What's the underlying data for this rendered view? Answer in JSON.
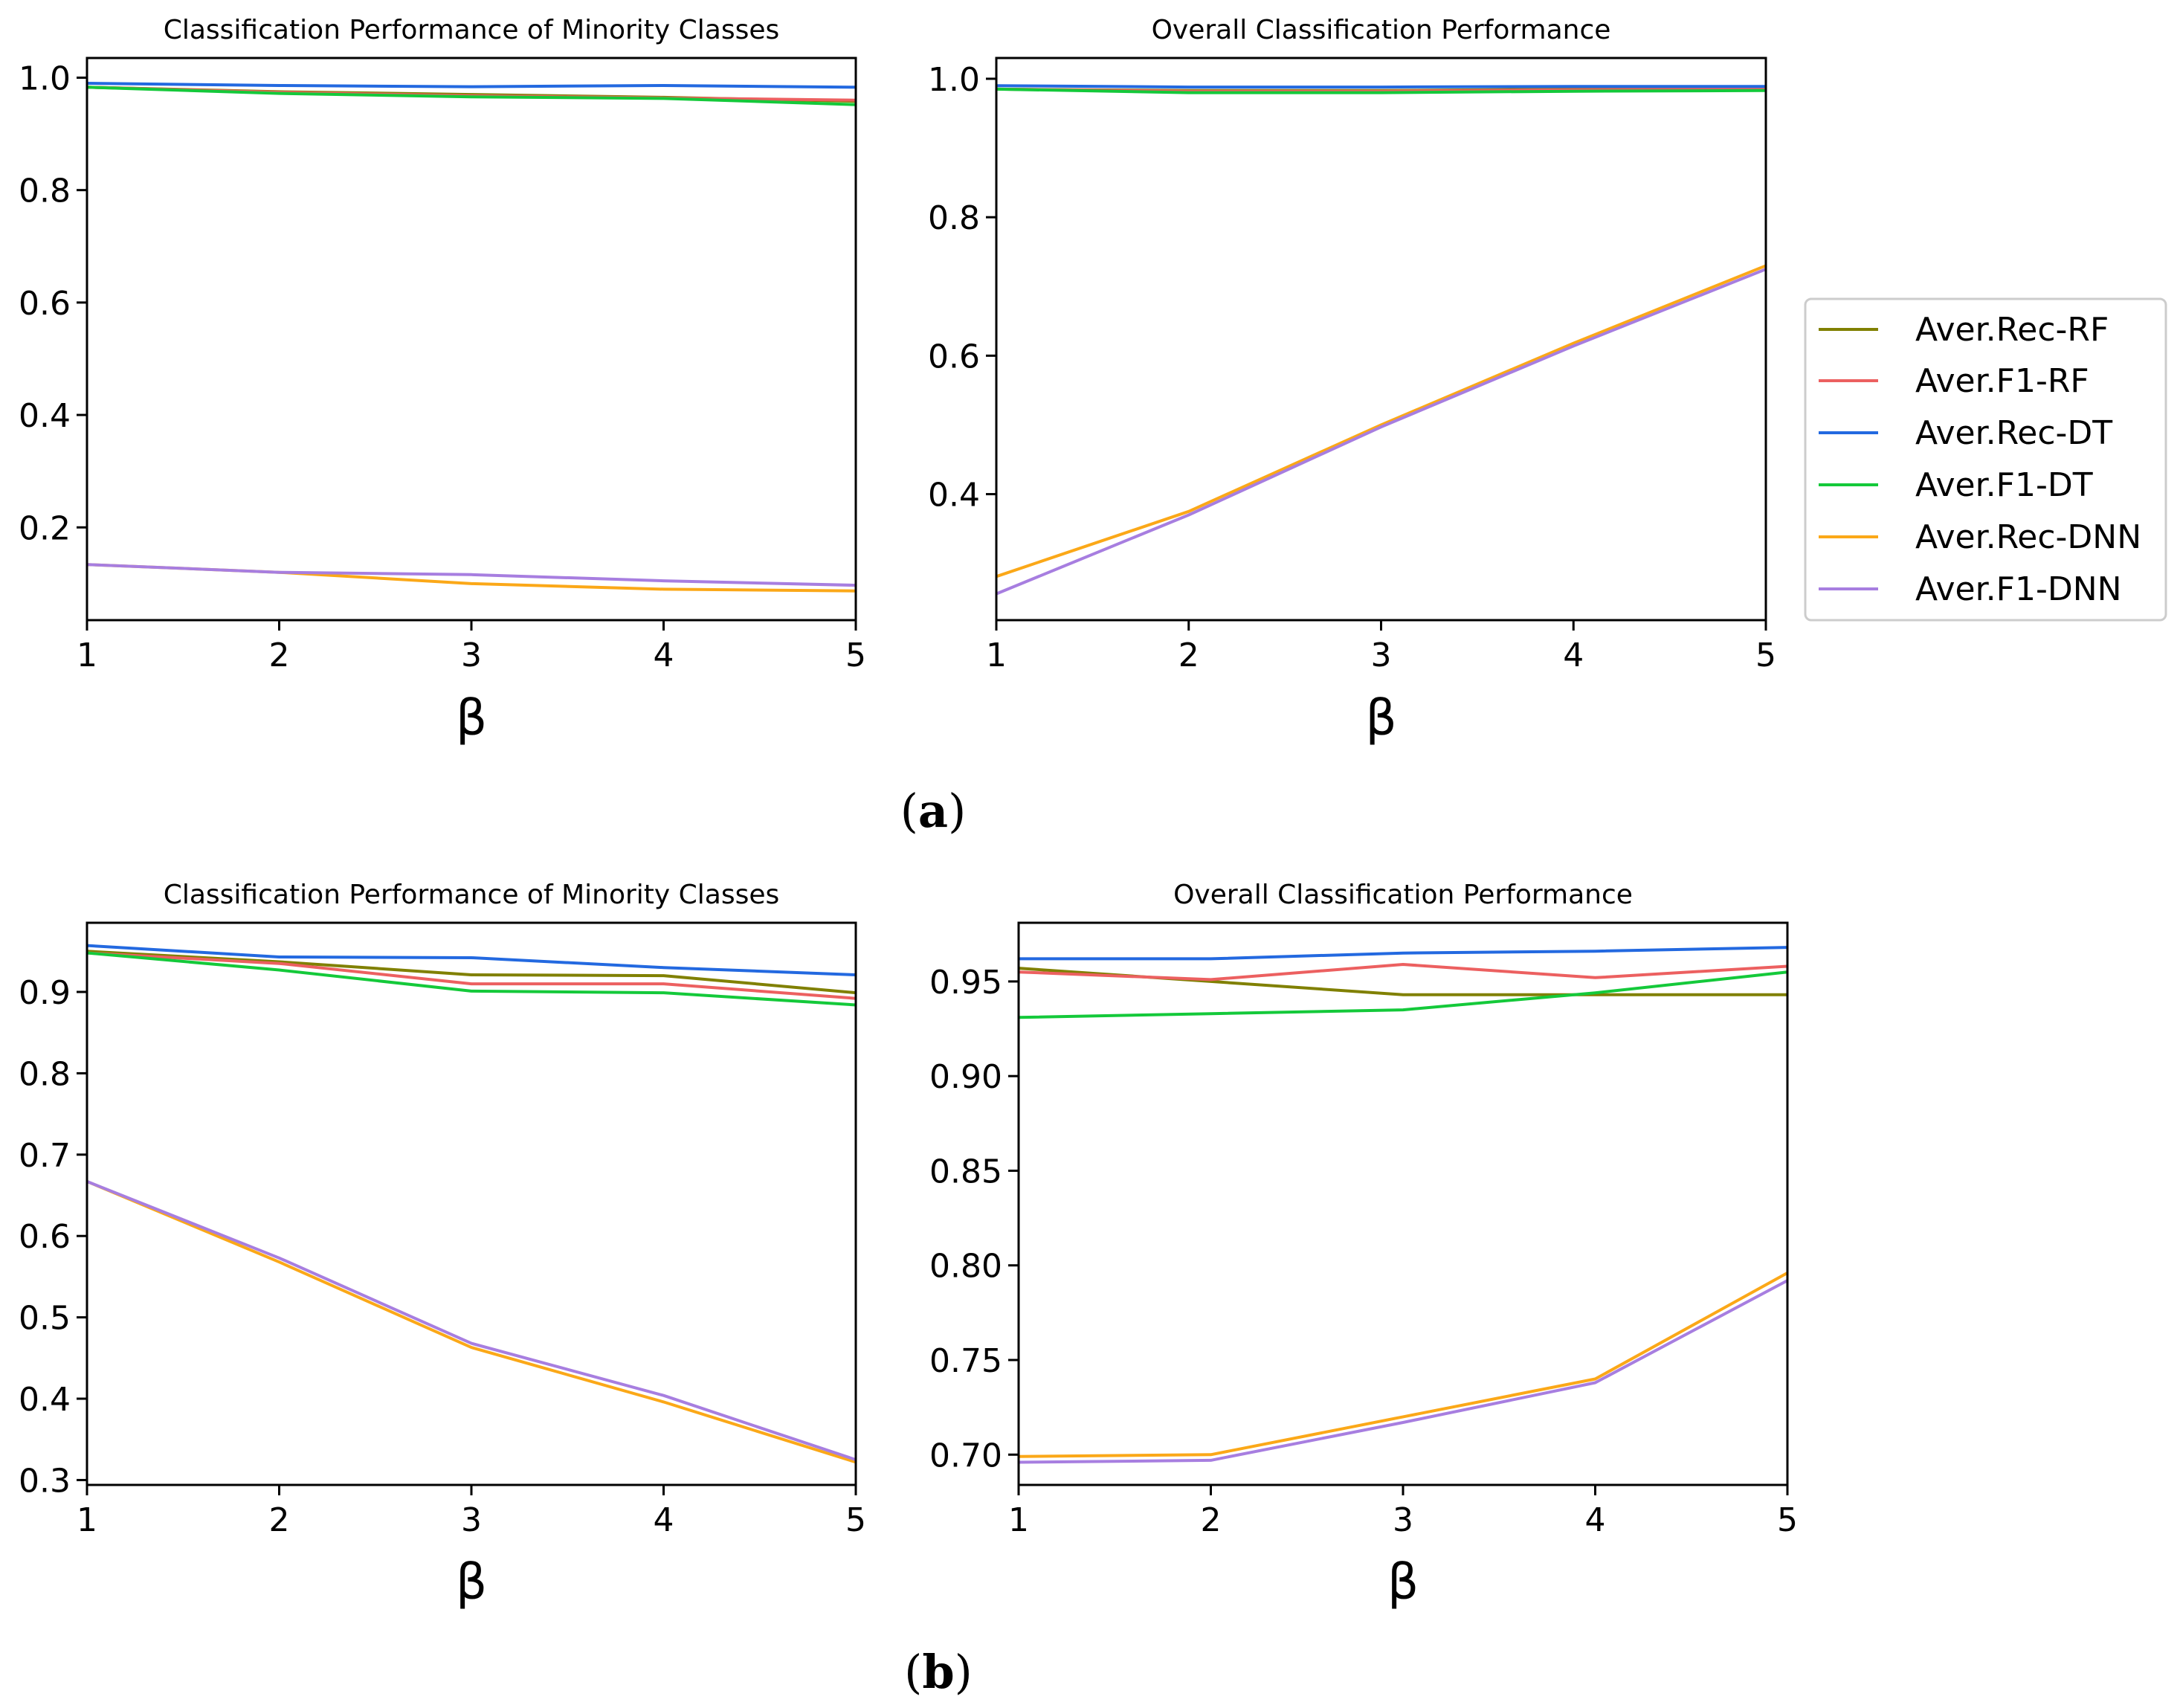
{
  "legend": {
    "entries": [
      {
        "label": "Aver.Rec-RF",
        "color": "#808000"
      },
      {
        "label": "Aver.F1-RF",
        "color": "#ec6060"
      },
      {
        "label": "Aver.Rec-DT",
        "color": "#2369e0"
      },
      {
        "label": "Aver.F1-DT",
        "color": "#14c93a"
      },
      {
        "label": "Aver.Rec-DNN",
        "color": "#fba818"
      },
      {
        "label": "Aver.F1-DNN",
        "color": "#a77ee0"
      }
    ]
  },
  "captions": {
    "a": {
      "open": "(",
      "letter": "a",
      "close": ")"
    },
    "b": {
      "open": "(",
      "letter": "b",
      "close": ")"
    }
  },
  "chart_data": [
    {
      "id": "a-left",
      "type": "line",
      "title": "Classification Performance of Minority Classes",
      "xlabel": "β",
      "ylabel": "",
      "x": [
        1,
        2,
        3,
        4,
        5
      ],
      "xlim": [
        1,
        5
      ],
      "ylim": [
        0.035,
        1.035
      ],
      "xticks": [
        "1",
        "2",
        "3",
        "4",
        "5"
      ],
      "yticks": [
        {
          "v": 0.2,
          "label": "0.2"
        },
        {
          "v": 0.4,
          "label": "0.4"
        },
        {
          "v": 0.6,
          "label": "0.6"
        },
        {
          "v": 0.8,
          "label": "0.8"
        },
        {
          "v": 1.0,
          "label": "1.0"
        }
      ],
      "series": [
        {
          "name": "Aver.Rec-RF",
          "color": "#808000",
          "values": [
            0.983,
            0.975,
            0.97,
            0.965,
            0.958
          ]
        },
        {
          "name": "Aver.F1-RF",
          "color": "#ec6060",
          "values": [
            0.983,
            0.974,
            0.968,
            0.964,
            0.96
          ]
        },
        {
          "name": "Aver.Rec-DT",
          "color": "#2369e0",
          "values": [
            0.99,
            0.986,
            0.984,
            0.986,
            0.983
          ]
        },
        {
          "name": "Aver.F1-DT",
          "color": "#14c93a",
          "values": [
            0.983,
            0.972,
            0.966,
            0.963,
            0.952
          ]
        },
        {
          "name": "Aver.Rec-DNN",
          "color": "#fba818",
          "values": [
            0.134,
            0.12,
            0.1,
            0.09,
            0.087
          ]
        },
        {
          "name": "Aver.F1-DNN",
          "color": "#a77ee0",
          "values": [
            0.134,
            0.12,
            0.116,
            0.105,
            0.097
          ]
        }
      ]
    },
    {
      "id": "a-right",
      "type": "line",
      "title": "Overall Classification Performance",
      "xlabel": "β",
      "ylabel": "",
      "x": [
        1,
        2,
        3,
        4,
        5
      ],
      "xlim": [
        1,
        5
      ],
      "ylim": [
        0.218,
        1.03
      ],
      "xticks": [
        "1",
        "2",
        "3",
        "4",
        "5"
      ],
      "yticks": [
        {
          "v": 0.4,
          "label": "0.4"
        },
        {
          "v": 0.6,
          "label": "0.6"
        },
        {
          "v": 0.8,
          "label": "0.8"
        },
        {
          "v": 1.0,
          "label": "1.0"
        }
      ],
      "series": [
        {
          "name": "Aver.Rec-RF",
          "color": "#808000",
          "values": [
            0.985,
            0.983,
            0.983,
            0.985,
            0.986
          ]
        },
        {
          "name": "Aver.F1-RF",
          "color": "#ec6060",
          "values": [
            0.985,
            0.982,
            0.982,
            0.984,
            0.985
          ]
        },
        {
          "name": "Aver.Rec-DT",
          "color": "#2369e0",
          "values": [
            0.99,
            0.988,
            0.988,
            0.989,
            0.989
          ]
        },
        {
          "name": "Aver.F1-DT",
          "color": "#14c93a",
          "values": [
            0.985,
            0.98,
            0.98,
            0.982,
            0.983
          ]
        },
        {
          "name": "Aver.Rec-DNN",
          "color": "#fba818",
          "values": [
            0.281,
            0.375,
            0.5,
            0.618,
            0.73
          ]
        },
        {
          "name": "Aver.F1-DNN",
          "color": "#a77ee0",
          "values": [
            0.256,
            0.37,
            0.497,
            0.614,
            0.725
          ]
        }
      ]
    },
    {
      "id": "b-left",
      "type": "line",
      "title": "Classification Performance of Minority Classes",
      "xlabel": "β",
      "ylabel": "",
      "x": [
        1,
        2,
        3,
        4,
        5
      ],
      "xlim": [
        1,
        5
      ],
      "ylim": [
        0.294,
        0.985
      ],
      "xticks": [
        "1",
        "2",
        "3",
        "4",
        "5"
      ],
      "yticks": [
        {
          "v": 0.3,
          "label": "0.3"
        },
        {
          "v": 0.4,
          "label": "0.4"
        },
        {
          "v": 0.5,
          "label": "0.5"
        },
        {
          "v": 0.6,
          "label": "0.6"
        },
        {
          "v": 0.7,
          "label": "0.7"
        },
        {
          "v": 0.8,
          "label": "0.8"
        },
        {
          "v": 0.9,
          "label": "0.9"
        }
      ],
      "series": [
        {
          "name": "Aver.Rec-RF",
          "color": "#808000",
          "values": [
            0.95,
            0.937,
            0.921,
            0.92,
            0.899
          ]
        },
        {
          "name": "Aver.F1-RF",
          "color": "#ec6060",
          "values": [
            0.948,
            0.935,
            0.91,
            0.91,
            0.892
          ]
        },
        {
          "name": "Aver.Rec-DT",
          "color": "#2369e0",
          "values": [
            0.957,
            0.943,
            0.942,
            0.93,
            0.921
          ]
        },
        {
          "name": "Aver.F1-DT",
          "color": "#14c93a",
          "values": [
            0.948,
            0.927,
            0.901,
            0.899,
            0.884
          ]
        },
        {
          "name": "Aver.Rec-DNN",
          "color": "#fba818",
          "values": [
            0.667,
            0.568,
            0.463,
            0.396,
            0.322
          ]
        },
        {
          "name": "Aver.F1-DNN",
          "color": "#a77ee0",
          "values": [
            0.667,
            0.573,
            0.468,
            0.404,
            0.325
          ]
        }
      ]
    },
    {
      "id": "b-right",
      "type": "line",
      "title": "Overall Classification Performance",
      "xlabel": "β",
      "ylabel": "",
      "x": [
        1,
        2,
        3,
        4,
        5
      ],
      "xlim": [
        1,
        5
      ],
      "ylim": [
        0.684,
        0.981
      ],
      "xticks": [
        "1",
        "2",
        "3",
        "4",
        "5"
      ],
      "yticks": [
        {
          "v": 0.7,
          "label": "0.70"
        },
        {
          "v": 0.75,
          "label": "0.75"
        },
        {
          "v": 0.8,
          "label": "0.80"
        },
        {
          "v": 0.85,
          "label": "0.85"
        },
        {
          "v": 0.9,
          "label": "0.90"
        },
        {
          "v": 0.95,
          "label": "0.95"
        }
      ],
      "series": [
        {
          "name": "Aver.Rec-RF",
          "color": "#808000",
          "values": [
            0.957,
            0.95,
            0.943,
            0.943,
            0.943
          ]
        },
        {
          "name": "Aver.F1-RF",
          "color": "#ec6060",
          "values": [
            0.955,
            0.951,
            0.959,
            0.952,
            0.958
          ]
        },
        {
          "name": "Aver.Rec-DT",
          "color": "#2369e0",
          "values": [
            0.962,
            0.962,
            0.965,
            0.966,
            0.968
          ]
        },
        {
          "name": "Aver.F1-DT",
          "color": "#14c93a",
          "values": [
            0.931,
            0.933,
            0.935,
            0.944,
            0.955
          ]
        },
        {
          "name": "Aver.Rec-DNN",
          "color": "#fba818",
          "values": [
            0.699,
            0.7,
            0.72,
            0.74,
            0.796
          ]
        },
        {
          "name": "Aver.F1-DNN",
          "color": "#a77ee0",
          "values": [
            0.696,
            0.697,
            0.717,
            0.738,
            0.792
          ]
        }
      ]
    }
  ]
}
